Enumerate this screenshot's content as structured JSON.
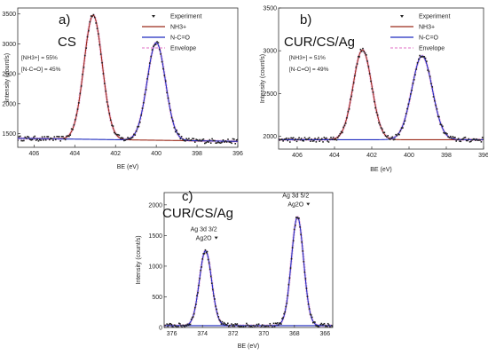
{
  "chart_data": [
    {
      "type": "line",
      "panel_label": "a)",
      "sample": "CS",
      "xlabel": "BE (eV)",
      "ylabel": "Intensity (count/s)",
      "xlim": [
        406.8,
        396
      ],
      "ylim": [
        1270,
        3600
      ],
      "xticks": [
        406,
        404,
        402,
        400,
        398,
        396
      ],
      "yticks": [
        1500,
        2000,
        2500,
        3000,
        3500
      ],
      "ratios": [
        "[NH3+] = 55%",
        "[N-C=O] = 45%"
      ],
      "legend": {
        "position": "top-right",
        "entries": [
          "Experiment",
          "NH3+",
          "N-C=O",
          "Envelope"
        ]
      },
      "baseline": {
        "start": [
          406.8,
          1420
        ],
        "end": [
          396,
          1370
        ]
      },
      "peaks": [
        {
          "name": "NH3+",
          "center": 403.1,
          "height": 3480,
          "sigma": 0.45,
          "color": "#9b2a1a"
        },
        {
          "name": "N-C=O",
          "center": 400.0,
          "height": 3020,
          "sigma": 0.45,
          "color": "#1f2bbf"
        }
      ],
      "experiment_color": "#222222",
      "envelope_color": "#e88ad0"
    },
    {
      "type": "line",
      "panel_label": "b)",
      "sample": "CUR/CS/Ag",
      "xlabel": "BE (eV)",
      "ylabel": "Intensity (count/s)",
      "xlim": [
        407,
        396
      ],
      "ylim": [
        1850,
        3500
      ],
      "xticks": [
        406,
        404,
        402,
        400,
        398,
        396
      ],
      "yticks": [
        2000,
        2500,
        3000,
        3500
      ],
      "ratios": [
        "[NH3+] = 51%",
        "[N-C=O] = 49%"
      ],
      "legend": {
        "position": "top-right",
        "entries": [
          "Experiment",
          "NH3+",
          "N-C=O",
          "Envelope"
        ]
      },
      "baseline": {
        "start": [
          407,
          1960
        ],
        "end": [
          396,
          1960
        ]
      },
      "peaks": [
        {
          "name": "NH3+",
          "center": 402.5,
          "height": 3010,
          "sigma": 0.5,
          "color": "#9b2a1a"
        },
        {
          "name": "N-C=O",
          "center": 399.3,
          "height": 2940,
          "sigma": 0.55,
          "color": "#1f2bbf"
        }
      ],
      "experiment_color": "#222222",
      "envelope_color": "#e88ad0"
    },
    {
      "type": "line",
      "panel_label": "c)",
      "sample": "CUR/CS/Ag",
      "xlabel": "BE (eV)",
      "ylabel": "Intensity (count/s)",
      "xlim": [
        376.5,
        365.5
      ],
      "ylim": [
        0,
        2200
      ],
      "xticks": [
        376,
        374,
        372,
        370,
        368,
        366
      ],
      "yticks": [
        0,
        500,
        1000,
        1500,
        2000
      ],
      "baseline": {
        "start": [
          376.5,
          30
        ],
        "end": [
          365.5,
          30
        ]
      },
      "peaks": [
        {
          "name": "Ag 3d 3/2",
          "center": 373.8,
          "height": 1250,
          "sigma": 0.4,
          "color": "#1f2bbf"
        },
        {
          "name": "Ag 3d 5/2",
          "center": 367.8,
          "height": 1800,
          "sigma": 0.4,
          "color": "#1f2bbf"
        }
      ],
      "peak_labels": [
        {
          "line1": "Ag 3d 3/2",
          "line2": "Ag2O",
          "peak_index": 0
        },
        {
          "line1": "Ag 3d 5/2",
          "line2": "Ag2O",
          "peak_index": 1
        }
      ],
      "experiment_color": "#222222",
      "envelope_color": "#e88ad0"
    }
  ]
}
